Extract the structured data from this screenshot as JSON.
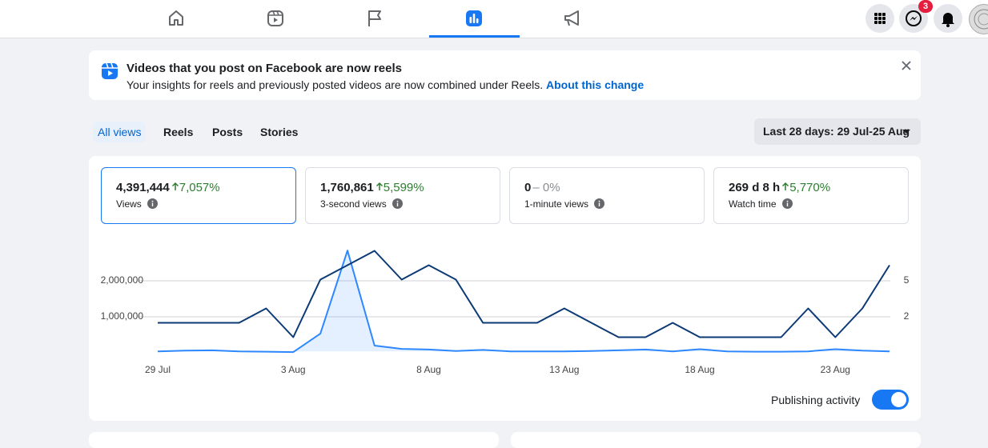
{
  "nav": {
    "notification_badge": "3"
  },
  "banner": {
    "title": "Videos that you post on Facebook are now reels",
    "text": "Your insights for reels and previously posted videos are now combined under Reels.",
    "link": "About this change"
  },
  "tabs": [
    "All views",
    "Reels",
    "Posts",
    "Stories"
  ],
  "date_range": "Last 28 days: 29 Jul-25 Aug",
  "metrics": [
    {
      "value": "4,391,444",
      "change": "7,057%",
      "trend": "up",
      "label": "Views"
    },
    {
      "value": "1,760,861",
      "change": "5,599%",
      "trend": "up",
      "label": "3-second views"
    },
    {
      "value": "0",
      "change": "– 0%",
      "trend": "flat",
      "label": "1-minute views"
    },
    {
      "value": "269 d 8 h",
      "change": "5,770%",
      "trend": "up",
      "label": "Watch time"
    }
  ],
  "chart_data": {
    "type": "line",
    "categories": [
      "29 Jul",
      null,
      null,
      null,
      null,
      "3 Aug",
      null,
      null,
      null,
      null,
      "8 Aug",
      null,
      null,
      null,
      null,
      "13 Aug",
      null,
      null,
      null,
      null,
      "18 Aug",
      null,
      null,
      null,
      null,
      "23 Aug",
      null,
      null
    ],
    "series": [
      {
        "color": "#2d88ff",
        "area": true,
        "values": [
          40000,
          60000,
          70000,
          40000,
          30000,
          20000,
          530000,
          2840000,
          200000,
          110000,
          90000,
          50000,
          80000,
          40000,
          40000,
          40000,
          50000,
          70000,
          90000,
          40000,
          100000,
          40000,
          30000,
          30000,
          40000,
          100000,
          60000,
          40000
        ]
      },
      {
        "color": "#0b3a75",
        "axis": "y2",
        "values": [
          1.5,
          1.5,
          1.5,
          1.5,
          2.7,
          0.3,
          5.1,
          6.3,
          7.5,
          5.1,
          6.3,
          5.1,
          1.5,
          1.5,
          1.5,
          2.7,
          1.5,
          0.3,
          0.3,
          1.5,
          0.3,
          0.3,
          0.3,
          0.3,
          2.7,
          0.3,
          2.7,
          6.3
        ]
      }
    ],
    "ylim": [
      0,
      3000000
    ],
    "yticks": [
      {
        "value": 1000000,
        "label": "1,000,000"
      },
      {
        "value": 2000000,
        "label": "2,000,000"
      }
    ],
    "y2lim": [
      -1,
      8
    ],
    "y2ticks": [
      2,
      5
    ],
    "grid": true
  },
  "publishing_activity": {
    "label": "Publishing activity",
    "enabled": true
  }
}
